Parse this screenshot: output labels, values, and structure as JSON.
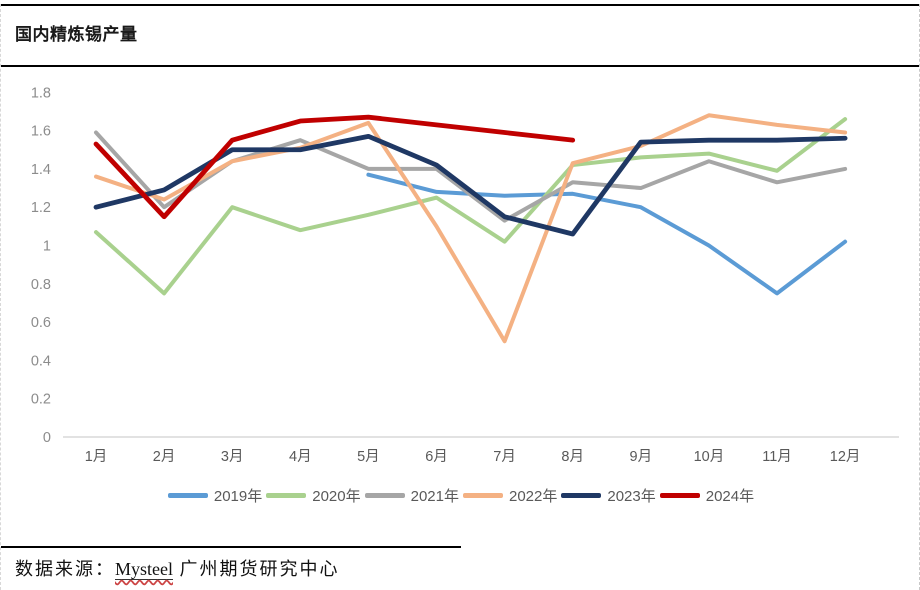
{
  "header": {
    "title": "国内精炼锡产量"
  },
  "footer": {
    "prefix": "数据来源：",
    "source_name": "Mysteel",
    "suffix": " 广州期货研究中心"
  },
  "chart_data": {
    "type": "line",
    "title": "国内精炼锡产量",
    "xlabel": "",
    "ylabel": "",
    "ylim": [
      0,
      1.8
    ],
    "y_ticks": [
      "0",
      "0.2",
      "0.4",
      "0.6",
      "0.8",
      "1",
      "1.2",
      "1.4",
      "1.6",
      "1.8"
    ],
    "grid": false,
    "legend_position": "bottom",
    "categories": [
      "1月",
      "2月",
      "3月",
      "4月",
      "5月",
      "6月",
      "7月",
      "8月",
      "9月",
      "10月",
      "11月",
      "12月"
    ],
    "series": [
      {
        "name": "2019年",
        "color": "#5B9BD5",
        "width": 4,
        "values": [
          null,
          null,
          null,
          null,
          1.37,
          1.28,
          1.26,
          1.27,
          1.2,
          1.0,
          0.75,
          1.02
        ]
      },
      {
        "name": "2020年",
        "color": "#A9D18E",
        "width": 4,
        "values": [
          1.07,
          0.75,
          1.2,
          1.08,
          1.16,
          1.25,
          1.02,
          1.42,
          1.46,
          1.48,
          1.39,
          1.66
        ]
      },
      {
        "name": "2021年",
        "color": "#A6A6A6",
        "width": 4,
        "values": [
          1.59,
          1.2,
          1.44,
          1.55,
          1.4,
          1.4,
          1.13,
          1.33,
          1.3,
          1.44,
          1.33,
          1.4
        ]
      },
      {
        "name": "2022年",
        "color": "#F4B183",
        "width": 4,
        "values": [
          1.36,
          1.24,
          1.44,
          1.51,
          1.64,
          1.1,
          0.5,
          1.43,
          1.52,
          1.68,
          1.63,
          1.59
        ]
      },
      {
        "name": "2023年",
        "color": "#1F3864",
        "width": 4.8,
        "values": [
          1.2,
          1.29,
          1.5,
          1.5,
          1.57,
          1.42,
          1.15,
          1.06,
          1.54,
          1.55,
          1.55,
          1.56
        ]
      },
      {
        "name": "2024年",
        "color": "#C00000",
        "width": 4.8,
        "values": [
          1.53,
          1.15,
          1.55,
          1.65,
          1.67,
          1.63,
          1.59,
          1.55,
          null,
          null,
          null,
          null
        ]
      }
    ]
  }
}
